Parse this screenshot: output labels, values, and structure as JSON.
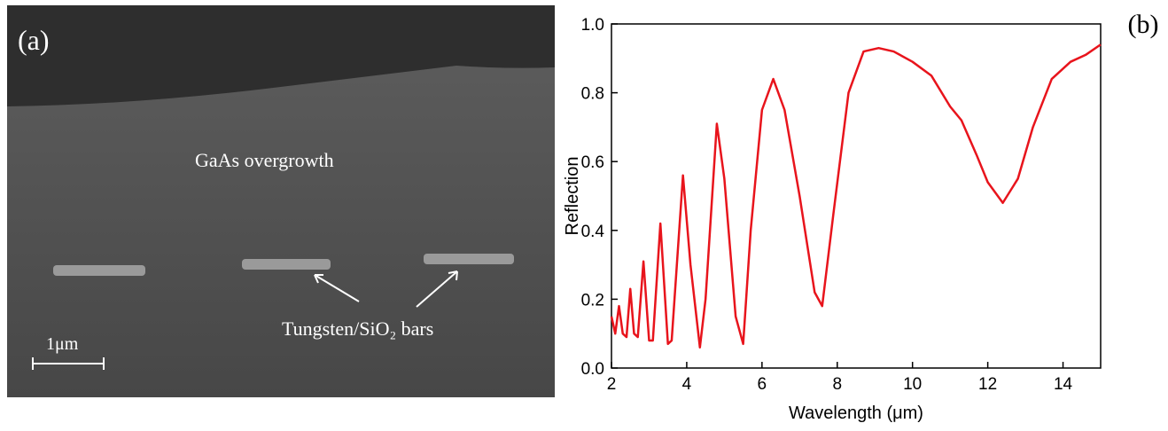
{
  "panel_a": {
    "label": "(a)",
    "region_label": "GaAs overgrowth",
    "bars_label": "Tungsten/SiO₂ bars",
    "scale_label": "1μm"
  },
  "chart_data": {
    "type": "line",
    "panel_label": "(b)",
    "x_label": "Wavelength (μm)",
    "y_label": "Reflection",
    "xlim": [
      2,
      15
    ],
    "ylim": [
      0,
      1
    ],
    "xticks": [
      2,
      4,
      6,
      8,
      10,
      12,
      14
    ],
    "yticks": [
      {
        "value": 0,
        "label": "0.0"
      },
      {
        "value": 0.2,
        "label": "0.2"
      },
      {
        "value": 0.4,
        "label": "0.4"
      },
      {
        "value": 0.6,
        "label": "0.6"
      },
      {
        "value": 0.8,
        "label": "0.8"
      },
      {
        "value": 1,
        "label": "1.0"
      }
    ],
    "x": [
      2.0,
      2.1,
      2.2,
      2.3,
      2.4,
      2.5,
      2.6,
      2.7,
      2.85,
      3.0,
      3.1,
      3.3,
      3.5,
      3.6,
      3.9,
      4.1,
      4.35,
      4.5,
      4.8,
      5.0,
      5.3,
      5.5,
      5.7,
      6.0,
      6.3,
      6.6,
      7.0,
      7.4,
      7.6,
      7.9,
      8.3,
      8.7,
      9.1,
      9.5,
      10.0,
      10.5,
      11.0,
      11.3,
      11.7,
      12.0,
      12.4,
      12.8,
      13.2,
      13.7,
      14.2,
      14.6,
      15.0
    ],
    "series": [
      {
        "color": "#e8141c",
        "values": [
          0.15,
          0.1,
          0.18,
          0.1,
          0.09,
          0.23,
          0.1,
          0.09,
          0.31,
          0.08,
          0.08,
          0.42,
          0.07,
          0.08,
          0.56,
          0.3,
          0.06,
          0.2,
          0.71,
          0.55,
          0.15,
          0.07,
          0.4,
          0.75,
          0.84,
          0.75,
          0.5,
          0.22,
          0.18,
          0.45,
          0.8,
          0.92,
          0.93,
          0.92,
          0.89,
          0.85,
          0.76,
          0.72,
          0.62,
          0.54,
          0.48,
          0.55,
          0.7,
          0.84,
          0.89,
          0.91,
          0.94
        ]
      }
    ]
  }
}
